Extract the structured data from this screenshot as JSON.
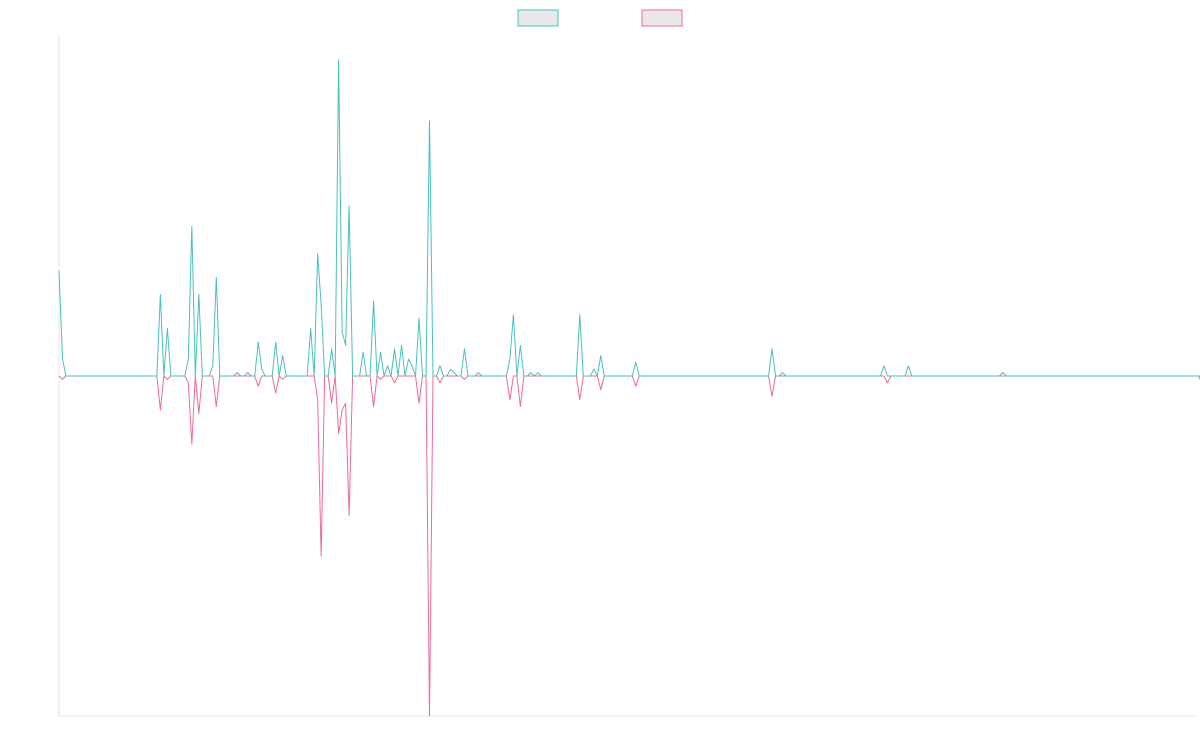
{
  "chart_data": {
    "type": "line",
    "title": "",
    "xlabel": "",
    "ylabel": "",
    "x_range": [
      0,
      325
    ],
    "ylim": [
      -1,
      1
    ],
    "grid": false,
    "legend": "top-center",
    "series": [
      {
        "color": "#4bc0c0",
        "fill": "#e8e8e8",
        "values": [
          0.31,
          0.05,
          0,
          0,
          0,
          0,
          0,
          0,
          0,
          0,
          0,
          0,
          0,
          0,
          0,
          0,
          0,
          0,
          0,
          0,
          0,
          0,
          0,
          0,
          0,
          0,
          0,
          0,
          0,
          0.24,
          0,
          0.14,
          0,
          0,
          0,
          0,
          0,
          0.05,
          0.44,
          0,
          0.24,
          0,
          0,
          0,
          0.03,
          0.29,
          0,
          0,
          0,
          0,
          0,
          0.01,
          0,
          0,
          0.01,
          0,
          0,
          0.1,
          0.02,
          0,
          0,
          0,
          0.1,
          0,
          0.06,
          0,
          0,
          0,
          0,
          0,
          0,
          0,
          0.14,
          0,
          0.36,
          0.21,
          0,
          0,
          0.08,
          0,
          0.93,
          0.13,
          0.09,
          0.5,
          0,
          0,
          0,
          0.07,
          0,
          0,
          0.22,
          0,
          0.07,
          0,
          0.03,
          0,
          0.08,
          0,
          0.09,
          0,
          0.05,
          0.03,
          0,
          0.17,
          0,
          0,
          0.75,
          0,
          0,
          0.03,
          0,
          0,
          0.02,
          0.01,
          0,
          0,
          0.08,
          0,
          0,
          0,
          0.01,
          0,
          0,
          0,
          0,
          0,
          0,
          0,
          0,
          0.05,
          0.18,
          0,
          0.09,
          0,
          0,
          0.01,
          0,
          0.01,
          0,
          0,
          0,
          0,
          0,
          0,
          0,
          0,
          0,
          0,
          0,
          0.18,
          0,
          0,
          0,
          0.02,
          0,
          0.06,
          0,
          0,
          0,
          0,
          0,
          0,
          0,
          0,
          0,
          0.04,
          0,
          0,
          0,
          0,
          0,
          0,
          0,
          0,
          0,
          0,
          0,
          0,
          0,
          0,
          0,
          0,
          0,
          0,
          0,
          0,
          0,
          0,
          0,
          0,
          0,
          0,
          0,
          0,
          0,
          0,
          0,
          0,
          0,
          0,
          0,
          0,
          0,
          0,
          0.08,
          0,
          0,
          0.01,
          0,
          0,
          0,
          0,
          0,
          0,
          0,
          0,
          0,
          0,
          0,
          0,
          0,
          0,
          0,
          0,
          0,
          0,
          0,
          0,
          0,
          0,
          0,
          0,
          0,
          0,
          0,
          0,
          0.03,
          0,
          0,
          0,
          0,
          0,
          0,
          0.03,
          0,
          0,
          0,
          0,
          0,
          0,
          0,
          0,
          0,
          0,
          0,
          0,
          0,
          0,
          0,
          0,
          0,
          0,
          0,
          0,
          0,
          0,
          0,
          0,
          0,
          0,
          0.01,
          0,
          0,
          0,
          0,
          0,
          0,
          0,
          0,
          0,
          0,
          0,
          0,
          0,
          0,
          0,
          0,
          0,
          0,
          0,
          0,
          0,
          0,
          0,
          0,
          0,
          0,
          0,
          0,
          0,
          0,
          0,
          0,
          0,
          0,
          0,
          0,
          0,
          0,
          0,
          0,
          0,
          0,
          0,
          0,
          0,
          0,
          0,
          0,
          0,
          0,
          0,
          0,
          0,
          0,
          0,
          0,
          0,
          0
        ]
      },
      {
        "color": "#f06b8f",
        "fill": "#e8e8e8",
        "values": [
          0,
          -0.01,
          0,
          0,
          0,
          0,
          0,
          0,
          0,
          0,
          0,
          0,
          0,
          0,
          0,
          0,
          0,
          0,
          0,
          0,
          0,
          0,
          0,
          0,
          0,
          0,
          0,
          0,
          0,
          -0.1,
          0,
          -0.01,
          0,
          0,
          0,
          0,
          0,
          -0.02,
          -0.2,
          0,
          -0.11,
          0,
          0,
          0,
          0,
          -0.09,
          0,
          0,
          0,
          0,
          0,
          0,
          0,
          0,
          0,
          0,
          0,
          -0.03,
          0,
          0,
          0,
          0,
          -0.05,
          0,
          -0.01,
          0,
          0,
          0,
          0,
          0,
          0,
          0,
          0,
          0,
          -0.07,
          -0.53,
          0,
          0,
          -0.08,
          0,
          -0.17,
          -0.1,
          -0.08,
          -0.41,
          0,
          0,
          0,
          0,
          0,
          0,
          -0.09,
          0,
          -0.01,
          0,
          0,
          0,
          -0.02,
          0,
          0,
          0,
          0,
          0,
          0,
          -0.08,
          0,
          0,
          -1,
          0,
          0,
          -0.02,
          0,
          0,
          0,
          0,
          0,
          0,
          -0.01,
          0,
          0,
          0,
          0,
          0,
          0,
          0,
          0,
          0,
          0,
          0,
          0,
          -0.07,
          0,
          0,
          -0.09,
          0,
          0,
          0,
          0,
          0,
          0,
          0,
          0,
          0,
          0,
          0,
          0,
          0,
          0,
          0,
          0,
          -0.07,
          0,
          0,
          0,
          0,
          0,
          -0.04,
          0,
          0,
          0,
          0,
          0,
          0,
          0,
          0,
          0,
          -0.03,
          0,
          0,
          0,
          0,
          0,
          0,
          0,
          0,
          0,
          0,
          0,
          0,
          0,
          0,
          0,
          0,
          0,
          0,
          0,
          0,
          0,
          0,
          0,
          0,
          0,
          0,
          0,
          0,
          0,
          0,
          0,
          0,
          0,
          0,
          0,
          0,
          0,
          0,
          -0.06,
          0,
          0,
          0,
          0,
          0,
          0,
          0,
          0,
          0,
          0,
          0,
          0,
          0,
          0,
          0,
          0,
          0,
          0,
          0,
          0,
          0,
          0,
          0,
          0,
          0,
          0,
          0,
          0,
          0,
          0,
          0,
          0,
          -0.02,
          0,
          0,
          0,
          0,
          0,
          0,
          0,
          0,
          0,
          0,
          0,
          0,
          0,
          0,
          0,
          0,
          0,
          0,
          0,
          0,
          0,
          0,
          0,
          0,
          0,
          0,
          0,
          0,
          0,
          0,
          0,
          0,
          0,
          0,
          0,
          0,
          0,
          0,
          0,
          0,
          0,
          0,
          0,
          0,
          0,
          0,
          0,
          0,
          0,
          0,
          0,
          0,
          0,
          0,
          0,
          0,
          0,
          0,
          0,
          0,
          0,
          0,
          0,
          0,
          0,
          0,
          0,
          0,
          0,
          0,
          0,
          0,
          0,
          0,
          0,
          0,
          0,
          0,
          0,
          0,
          0,
          0,
          0,
          0,
          0,
          0,
          0,
          0,
          0,
          -0.02
        ]
      }
    ]
  }
}
